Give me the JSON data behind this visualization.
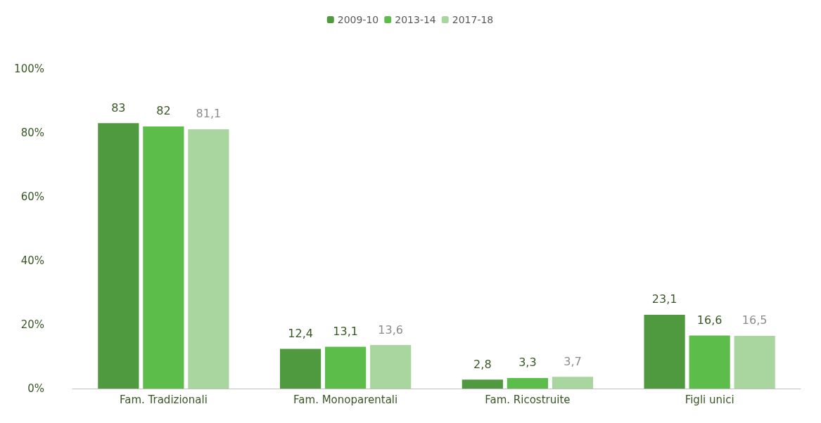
{
  "chart_data": {
    "type": "bar",
    "categories": [
      "Fam. Tradizionali",
      "Fam. Monoparentali",
      "Fam. Ricostruite",
      "Figli unici"
    ],
    "series": [
      {
        "name": "2009-10",
        "color": "#4f9a3f",
        "values": [
          83,
          12.4,
          2.8,
          23.1
        ],
        "value_labels": [
          "83",
          "12,4",
          "2,8",
          "23,1"
        ]
      },
      {
        "name": "2013-14",
        "color": "#5dbd4b",
        "values": [
          82,
          13.1,
          3.3,
          16.6
        ],
        "value_labels": [
          "82",
          "13,1",
          "3,3",
          "16,6"
        ]
      },
      {
        "name": "2017-18",
        "color": "#a9d59f",
        "values": [
          81.1,
          13.6,
          3.7,
          16.5
        ],
        "value_labels": [
          "81,1",
          "13,6",
          "3,7",
          "16,5"
        ]
      }
    ],
    "ylim": [
      0,
      100
    ],
    "yticks": [
      {
        "value": 0,
        "label": "0%"
      },
      {
        "value": 20,
        "label": "20%"
      },
      {
        "value": 40,
        "label": "40%"
      },
      {
        "value": 60,
        "label": "60%"
      },
      {
        "value": 80,
        "label": "80%"
      },
      {
        "value": 100,
        "label": "100%"
      }
    ],
    "grid": false,
    "legend": "top"
  }
}
